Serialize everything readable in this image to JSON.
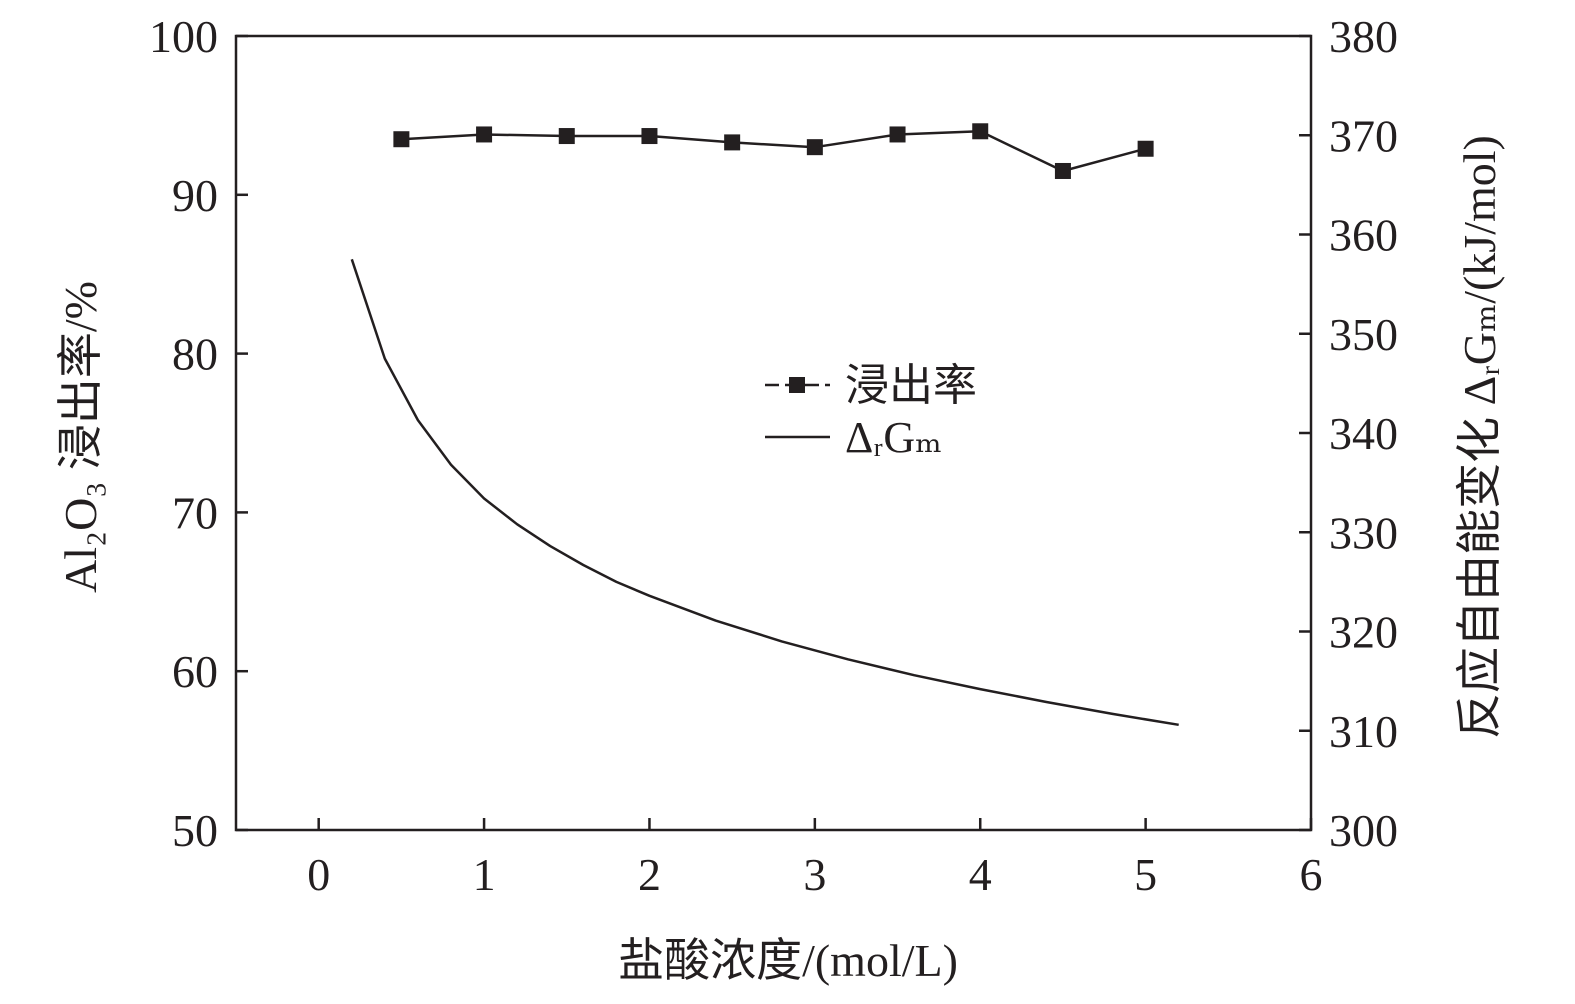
{
  "chart_data": {
    "type": "line",
    "xlabel": "盐酸浓度/(mol/L)",
    "ylabel_left": "Al₂O₃ 浸出率/%",
    "ylabel_right": "反应自由能变化 ΔᵣGₘ/(kJ/mol)",
    "xlim": [
      -0.5,
      6
    ],
    "ylim_left": [
      50,
      100
    ],
    "ylim_right": [
      300,
      380
    ],
    "xticks": [
      "0",
      "1",
      "2",
      "3",
      "4",
      "5",
      "6"
    ],
    "yticks_left": [
      "50",
      "60",
      "70",
      "80",
      "90",
      "100"
    ],
    "yticks_right": [
      "300",
      "310",
      "320",
      "330",
      "340",
      "350",
      "360",
      "370",
      "380"
    ],
    "grid": false,
    "legend_position": "center",
    "series": [
      {
        "name": "浸出率",
        "axis": "left",
        "style": "line-square-markers",
        "color": "#231f20",
        "x": [
          0.5,
          1.0,
          1.5,
          2.0,
          2.5,
          3.0,
          3.5,
          4.0,
          4.5,
          5.0
        ],
        "y": [
          93.5,
          93.8,
          93.7,
          93.7,
          93.3,
          93.0,
          93.8,
          94.0,
          91.5,
          92.9
        ]
      },
      {
        "name": "ΔᵣGₘ",
        "axis": "right",
        "style": "line",
        "color": "#231f20",
        "x": [
          0.2,
          0.4,
          0.6,
          0.8,
          1.0,
          1.2,
          1.4,
          1.6,
          1.8,
          2.0,
          2.4,
          2.8,
          3.2,
          3.6,
          4.0,
          4.4,
          4.8,
          5.2
        ],
        "y": [
          357.5,
          347.5,
          341.3,
          336.8,
          333.4,
          330.8,
          328.6,
          326.7,
          325.0,
          323.6,
          321.1,
          319.0,
          317.2,
          315.6,
          314.2,
          312.9,
          311.7,
          310.6
        ]
      }
    ]
  }
}
